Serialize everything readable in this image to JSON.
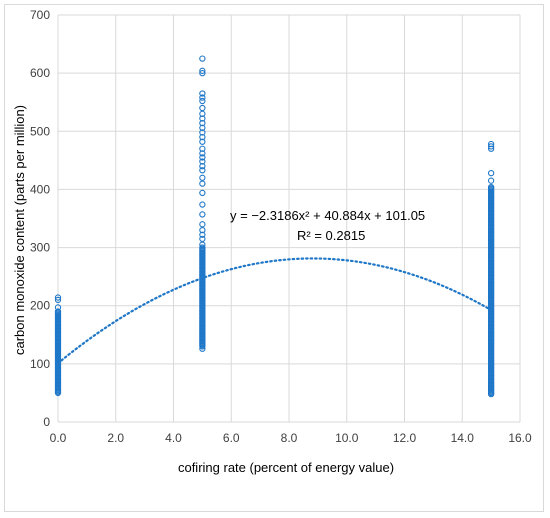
{
  "chart_data": {
    "type": "scatter",
    "xlabel": "cofiring rate (percent of energy value)",
    "ylabel": "carbon monoxide content (parts per million)",
    "xlim": [
      0,
      16
    ],
    "ylim": [
      0,
      700
    ],
    "x_ticks": [
      0,
      2,
      4,
      6,
      8,
      10,
      12,
      14,
      16
    ],
    "y_ticks": [
      0,
      100,
      200,
      300,
      400,
      500,
      600,
      700
    ],
    "x_tick_labels": [
      "0.0",
      "2.0",
      "4.0",
      "6.0",
      "8.0",
      "10.0",
      "12.0",
      "14.0",
      "16.0"
    ],
    "y_tick_labels": [
      "0",
      "100",
      "200",
      "300",
      "400",
      "500",
      "600",
      "700"
    ],
    "grid": true,
    "marker_color": "#1f77c8",
    "trendline": {
      "type": "polynomial",
      "order": 2,
      "coefficients": [
        -2.3186,
        40.884,
        101.05
      ],
      "x_range": [
        0,
        15
      ],
      "style": "dotted",
      "color": "#1f77c8",
      "equation": "y = −2.3186x² + 40.884x + 101.05",
      "r_squared": "R² = 0.2815"
    },
    "series": [
      {
        "x_group": 0,
        "dense_range": [
          50,
          190
        ],
        "outliers": [
          197,
          210,
          214
        ]
      },
      {
        "x_group": 5,
        "dense_range": [
          130,
          300
        ],
        "outliers": [
          126,
          305,
          315,
          322,
          330,
          340,
          357,
          374,
          394,
          410,
          420,
          433,
          440,
          448,
          455,
          462,
          470,
          482,
          490,
          498,
          506,
          514,
          522,
          530,
          540,
          552,
          558,
          565,
          600,
          604,
          625
        ]
      },
      {
        "x_group": 15,
        "dense_range": [
          48,
          405
        ],
        "outliers": [
          415,
          428,
          470,
          474,
          478
        ]
      }
    ]
  }
}
